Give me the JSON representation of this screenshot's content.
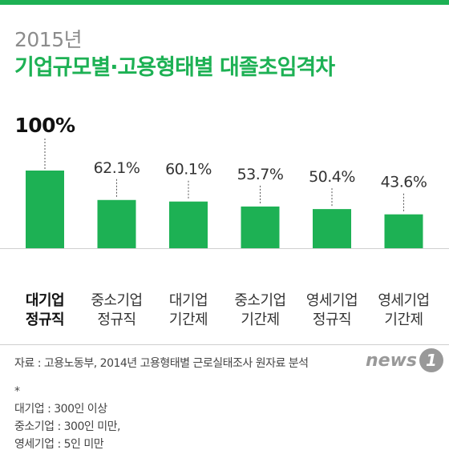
{
  "colors": {
    "accent": "#1db154",
    "bar": "#1db154",
    "leader": "#555555",
    "baseline": "#cfcfcf"
  },
  "header": {
    "year": "2015년",
    "title": "기업규모별·고용형태별 대졸초임격차"
  },
  "chart_data": {
    "type": "bar",
    "title": "기업규모별·고용형태별 대졸초임격차",
    "subtitle": "2015년",
    "categories": [
      [
        "대기업",
        "정규직"
      ],
      [
        "중소기업",
        "정규직"
      ],
      [
        "대기업",
        "기간제"
      ],
      [
        "중소기업",
        "기간제"
      ],
      [
        "영세기업",
        "정규직"
      ],
      [
        "영세기업",
        "기간제"
      ]
    ],
    "values": [
      100,
      62.1,
      60.1,
      53.7,
      50.4,
      43.6
    ],
    "value_labels": [
      "100%",
      "62.1%",
      "60.1%",
      "53.7%",
      "50.4%",
      "43.6%"
    ],
    "unit": "%",
    "xlabel": "",
    "ylabel": "",
    "ylim": [
      0,
      100
    ],
    "grid": false,
    "legend": "none",
    "highlight_index": 0
  },
  "footer": {
    "source": "자료 : 고용노동부, 2014년 고용형태별 근로실태조사 원자료 분석",
    "logo": {
      "text": "news",
      "badge": "1",
      "icon": "news1-logo"
    },
    "notes": {
      "marker": "*",
      "lines": [
        "대기업 : 300인 이상",
        "중소기업 : 300인 미만,",
        "영세기업 : 5인 미만"
      ]
    }
  }
}
